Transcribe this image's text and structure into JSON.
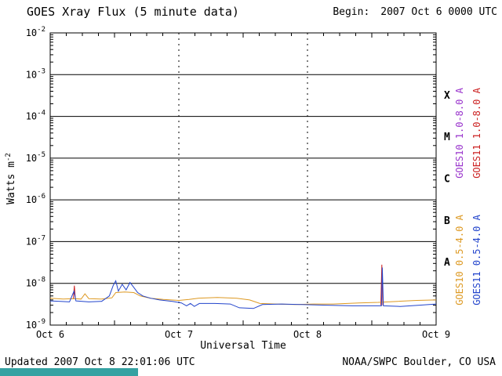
{
  "header": {
    "title": "GOES Xray Flux (5 minute data)",
    "begin_label": "Begin:",
    "begin_value": "2007 Oct 6 0000 UTC"
  },
  "axes": {
    "ylabel_base": "Watts m",
    "ylabel_exp": "-2",
    "xlabel": "Universal Time"
  },
  "footer": {
    "updated": "Updated 2007 Oct 8 22:01:06 UTC",
    "source": "NOAA/SWPC Boulder, CO USA"
  },
  "colors": {
    "strip": "#35a2a2",
    "grid": "#000000"
  },
  "right_labels": [
    {
      "text": "GOES10 1.0-8.0 A",
      "color": "#9933cc"
    },
    {
      "text": "GOES11 1.0-8.0 A",
      "color": "#cc2222"
    },
    {
      "text": "GOES10 0.5-4.0 A",
      "color": "#dd9922"
    },
    {
      "text": "GOES11 0.5-4.0 A",
      "color": "#2244cc"
    }
  ],
  "chart_data": {
    "type": "line",
    "title": "GOES Xray Flux (5 minute data)",
    "xlabel": "Universal Time",
    "ylabel": "Watts m^-2",
    "x_ticks": [
      "Oct 6",
      "Oct 7",
      "Oct 8",
      "Oct 9"
    ],
    "x_range_days": [
      0,
      3
    ],
    "y_exponents": [
      -2,
      -3,
      -4,
      -5,
      -6,
      -7,
      -8,
      -9
    ],
    "ylim": [
      1e-09,
      0.01
    ],
    "grid": {
      "h_decade_lines": true,
      "v_dashed_at_days": [
        1,
        2
      ]
    },
    "flare_classes": [
      {
        "label": "X",
        "exp": -3.5
      },
      {
        "label": "M",
        "exp": -4.5
      },
      {
        "label": "C",
        "exp": -5.5
      },
      {
        "label": "B",
        "exp": -6.5
      },
      {
        "label": "A",
        "exp": -7.5
      }
    ],
    "series": [
      {
        "id": "goes10-long",
        "name": "GOES10 1.0-8.0 A",
        "color": "#9933cc",
        "points": []
      },
      {
        "id": "goes11-long",
        "name": "GOES11 1.0-8.0 A",
        "color": "#cc2222",
        "points": [
          [
            0.18,
            4.2e-09
          ],
          [
            0.188,
            8.8e-09
          ],
          [
            0.196,
            4.2e-09
          ],
          null,
          [
            2.57,
            3e-09
          ],
          [
            2.578,
            2.8e-08
          ],
          [
            2.586,
            3e-09
          ]
        ]
      },
      {
        "id": "goes10-short",
        "name": "GOES10 0.5-4.0 A",
        "color": "#dd9922",
        "points": [
          [
            0.0,
            4.4e-09
          ],
          [
            0.1,
            4.2e-09
          ],
          [
            0.19,
            4.3e-09
          ],
          [
            0.24,
            4.2e-09
          ],
          [
            0.27,
            5.6e-09
          ],
          [
            0.3,
            4.3e-09
          ],
          [
            0.4,
            4.2e-09
          ],
          [
            0.48,
            4.5e-09
          ],
          [
            0.51,
            6e-09
          ],
          [
            0.58,
            6.2e-09
          ],
          [
            0.65,
            6e-09
          ],
          [
            0.7,
            5e-09
          ],
          [
            0.78,
            4.4e-09
          ],
          [
            0.88,
            4.1e-09
          ],
          [
            1.0,
            3.9e-09
          ],
          [
            1.08,
            4.1e-09
          ],
          [
            1.15,
            4.4e-09
          ],
          [
            1.3,
            4.6e-09
          ],
          [
            1.45,
            4.4e-09
          ],
          [
            1.55,
            4e-09
          ],
          [
            1.63,
            3.3e-09
          ],
          [
            1.75,
            3.2e-09
          ],
          [
            1.9,
            3.1e-09
          ],
          [
            2.05,
            3.2e-09
          ],
          [
            2.2,
            3.2e-09
          ],
          [
            2.4,
            3.4e-09
          ],
          [
            2.55,
            3.5e-09
          ],
          [
            2.7,
            3.7e-09
          ],
          [
            2.85,
            3.9e-09
          ],
          [
            3.0,
            4e-09
          ]
        ]
      },
      {
        "id": "goes11-short",
        "name": "GOES11 0.5-4.0 A",
        "color": "#2244cc",
        "points": [
          [
            0.0,
            3.8e-09
          ],
          [
            0.08,
            3.7e-09
          ],
          [
            0.15,
            3.6e-09
          ],
          [
            0.185,
            6.5e-09
          ],
          [
            0.2,
            3.8e-09
          ],
          [
            0.3,
            3.6e-09
          ],
          [
            0.4,
            3.7e-09
          ],
          [
            0.46,
            5e-09
          ],
          [
            0.49,
            9e-09
          ],
          [
            0.51,
            1.15e-08
          ],
          [
            0.53,
            6.5e-09
          ],
          [
            0.56,
            9.5e-09
          ],
          [
            0.59,
            7e-09
          ],
          [
            0.62,
            1.05e-08
          ],
          [
            0.65,
            8e-09
          ],
          [
            0.68,
            6e-09
          ],
          [
            0.72,
            5e-09
          ],
          [
            0.78,
            4.4e-09
          ],
          [
            0.85,
            4e-09
          ],
          [
            0.95,
            3.7e-09
          ],
          [
            1.02,
            3.4e-09
          ],
          [
            1.06,
            2.9e-09
          ],
          [
            1.09,
            3.3e-09
          ],
          [
            1.12,
            2.8e-09
          ],
          [
            1.16,
            3.3e-09
          ],
          [
            1.28,
            3.3e-09
          ],
          [
            1.4,
            3.2e-09
          ],
          [
            1.47,
            2.6e-09
          ],
          [
            1.58,
            2.5e-09
          ],
          [
            1.65,
            3.1e-09
          ],
          [
            1.8,
            3.2e-09
          ],
          [
            1.95,
            3.1e-09
          ],
          [
            2.15,
            3e-09
          ],
          [
            2.35,
            2.9e-09
          ],
          [
            2.55,
            2.9e-09
          ],
          [
            2.575,
            2.9e-09
          ],
          [
            2.582,
            2.4e-08
          ],
          [
            2.59,
            2.9e-09
          ],
          [
            2.72,
            2.8e-09
          ],
          [
            2.87,
            3e-09
          ],
          [
            3.0,
            3.2e-09
          ]
        ]
      }
    ]
  }
}
